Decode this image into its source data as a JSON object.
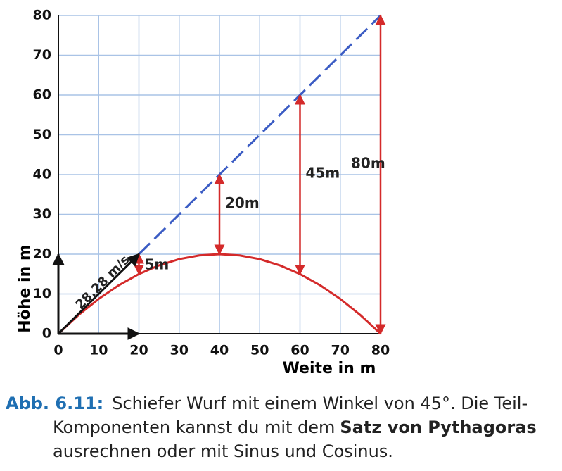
{
  "chart_data": {
    "type": "line",
    "x_label": "Weite in m",
    "y_label": "Höhe in m",
    "xlim": [
      0,
      80
    ],
    "ylim": [
      0,
      80
    ],
    "xticks": [
      0,
      10,
      20,
      30,
      40,
      50,
      60,
      70,
      80
    ],
    "yticks": [
      0,
      10,
      20,
      30,
      40,
      50,
      60,
      70,
      80
    ],
    "grid": true,
    "x": [
      0,
      5,
      10,
      15,
      20,
      25,
      30,
      35,
      40,
      45,
      50,
      55,
      60,
      65,
      70,
      75,
      80
    ],
    "series": [
      {
        "color": "#d42a2a",
        "dashed": false,
        "values": [
          0,
          4.6875,
          8.75,
          12.1875,
          15,
          17.1875,
          18.75,
          19.6875,
          20,
          19.6875,
          18.75,
          17.1875,
          15,
          12.1875,
          8.75,
          4.6875,
          0
        ]
      },
      {
        "color": "#3b5cc4",
        "dashed": true,
        "values": [
          null,
          null,
          null,
          null,
          20,
          25,
          30,
          35,
          40,
          45,
          50,
          55,
          60,
          65,
          70,
          75,
          80
        ]
      }
    ],
    "drop_arrows": [
      {
        "x": 20,
        "from": 20,
        "to": 15,
        "label": "5m"
      },
      {
        "x": 40,
        "from": 40,
        "to": 20,
        "label": "20m"
      },
      {
        "x": 60,
        "from": 60,
        "to": 15,
        "label": "45m"
      },
      {
        "x": 80,
        "from": 80,
        "to": 0,
        "label": "80m"
      }
    ],
    "vectors": [
      {
        "x": [
          0,
          20
        ],
        "y": [
          0,
          20
        ],
        "label": "28,28 m/s"
      },
      {
        "x": [
          0,
          20
        ],
        "y": [
          0,
          0
        ]
      },
      {
        "x": [
          0,
          0
        ],
        "y": [
          0,
          20
        ]
      }
    ]
  },
  "caption": {
    "label": "Abb. 6.11:",
    "line1": "Schiefer Wurf mit einem Winkel von 45°. Die Teil-",
    "line2": "Komponenten kannst du mit dem",
    "line2_bold": "Satz von Pythagoras",
    "line3": "ausrechnen oder mit Sinus und Cosinus."
  }
}
